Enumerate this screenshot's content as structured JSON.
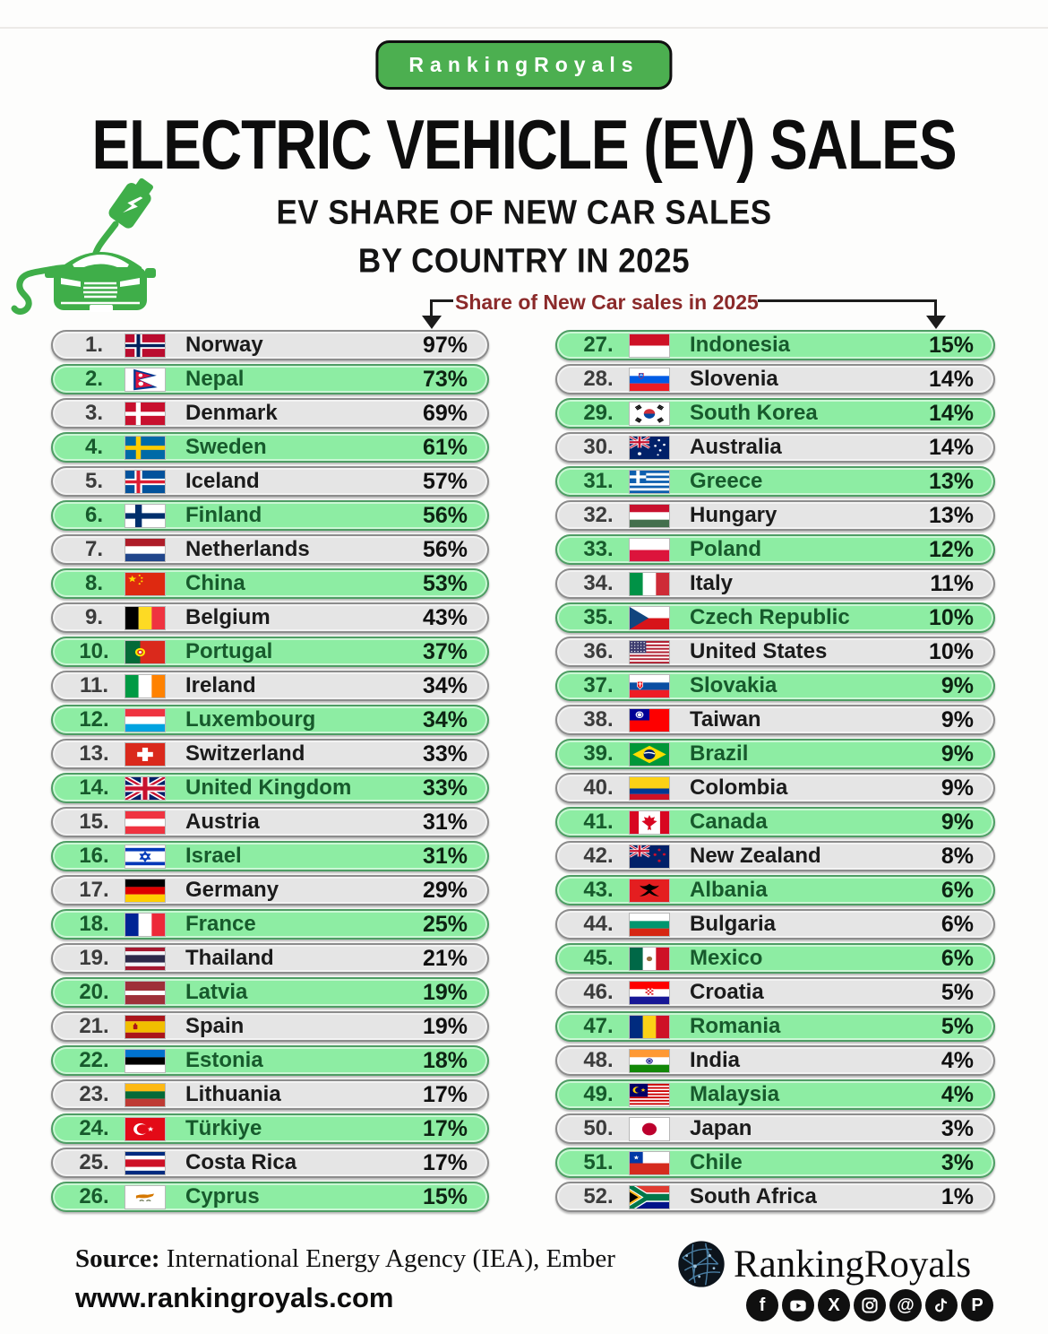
{
  "badge": {
    "label": "RankingRoyals"
  },
  "header": {
    "title": "ELECTRIC VEHICLE (EV) SALES",
    "subtitle1": "EV SHARE OF NEW CAR SALES",
    "subtitle2": "BY COUNTRY IN 2025"
  },
  "callout": {
    "label": "Share of New Car sales in 2025"
  },
  "colors": {
    "accent_green": "#4CAF50",
    "row_green": "#8DEDA3",
    "row_green_border": "#4E9D64",
    "row_gray": "#E5E5E5",
    "row_gray_border": "#8C8C8C",
    "green_text": "#175A2C",
    "callout_text": "#8B2A2A"
  },
  "rows": [
    {
      "rank": "1.",
      "country": "Norway",
      "value": "97%",
      "flag": "flag-norway"
    },
    {
      "rank": "2.",
      "country": "Nepal",
      "value": "73%",
      "flag": "flag-nepal"
    },
    {
      "rank": "3.",
      "country": "Denmark",
      "value": "69%",
      "flag": "flag-denmark"
    },
    {
      "rank": "4.",
      "country": "Sweden",
      "value": "61%",
      "flag": "flag-sweden"
    },
    {
      "rank": "5.",
      "country": "Iceland",
      "value": "57%",
      "flag": "flag-iceland"
    },
    {
      "rank": "6.",
      "country": "Finland",
      "value": "56%",
      "flag": "flag-finland"
    },
    {
      "rank": "7.",
      "country": "Netherlands",
      "value": "56%",
      "flag": "flag-netherlands"
    },
    {
      "rank": "8.",
      "country": "China",
      "value": "53%",
      "flag": "flag-china"
    },
    {
      "rank": "9.",
      "country": "Belgium",
      "value": "43%",
      "flag": "flag-belgium"
    },
    {
      "rank": "10.",
      "country": "Portugal",
      "value": "37%",
      "flag": "flag-portugal"
    },
    {
      "rank": "11.",
      "country": "Ireland",
      "value": "34%",
      "flag": "flag-ireland"
    },
    {
      "rank": "12.",
      "country": "Luxembourg",
      "value": "34%",
      "flag": "flag-luxembourg"
    },
    {
      "rank": "13.",
      "country": "Switzerland",
      "value": "33%",
      "flag": "flag-switzerland"
    },
    {
      "rank": "14.",
      "country": "United Kingdom",
      "value": "33%",
      "flag": "flag-uk"
    },
    {
      "rank": "15.",
      "country": "Austria",
      "value": "31%",
      "flag": "flag-austria"
    },
    {
      "rank": "16.",
      "country": "Israel",
      "value": "31%",
      "flag": "flag-israel"
    },
    {
      "rank": "17.",
      "country": "Germany",
      "value": "29%",
      "flag": "flag-germany"
    },
    {
      "rank": "18.",
      "country": "France",
      "value": "25%",
      "flag": "flag-france"
    },
    {
      "rank": "19.",
      "country": "Thailand",
      "value": "21%",
      "flag": "flag-thailand"
    },
    {
      "rank": "20.",
      "country": "Latvia",
      "value": "19%",
      "flag": "flag-latvia"
    },
    {
      "rank": "21.",
      "country": "Spain",
      "value": "19%",
      "flag": "flag-spain"
    },
    {
      "rank": "22.",
      "country": "Estonia",
      "value": "18%",
      "flag": "flag-estonia"
    },
    {
      "rank": "23.",
      "country": "Lithuania",
      "value": "17%",
      "flag": "flag-lithuania"
    },
    {
      "rank": "24.",
      "country": "Türkiye",
      "value": "17%",
      "flag": "flag-turkiye"
    },
    {
      "rank": "25.",
      "country": "Costa Rica",
      "value": "17%",
      "flag": "flag-costarica"
    },
    {
      "rank": "26.",
      "country": "Cyprus",
      "value": "15%",
      "flag": "flag-cyprus"
    },
    {
      "rank": "27.",
      "country": "Indonesia",
      "value": "15%",
      "flag": "flag-indonesia"
    },
    {
      "rank": "28.",
      "country": "Slovenia",
      "value": "14%",
      "flag": "flag-slovenia"
    },
    {
      "rank": "29.",
      "country": "South Korea",
      "value": "14%",
      "flag": "flag-southkorea"
    },
    {
      "rank": "30.",
      "country": "Australia",
      "value": "14%",
      "flag": "flag-australia"
    },
    {
      "rank": "31.",
      "country": "Greece",
      "value": "13%",
      "flag": "flag-greece"
    },
    {
      "rank": "32.",
      "country": "Hungary",
      "value": "13%",
      "flag": "flag-hungary"
    },
    {
      "rank": "33.",
      "country": "Poland",
      "value": "12%",
      "flag": "flag-poland"
    },
    {
      "rank": "34.",
      "country": "Italy",
      "value": "11%",
      "flag": "flag-italy"
    },
    {
      "rank": "35.",
      "country": "Czech Republic",
      "value": "10%",
      "flag": "flag-czech"
    },
    {
      "rank": "36.",
      "country": "United States",
      "value": "10%",
      "flag": "flag-usa"
    },
    {
      "rank": "37.",
      "country": "Slovakia",
      "value": "9%",
      "flag": "flag-slovakia"
    },
    {
      "rank": "38.",
      "country": "Taiwan",
      "value": "9%",
      "flag": "flag-taiwan"
    },
    {
      "rank": "39.",
      "country": "Brazil",
      "value": "9%",
      "flag": "flag-brazil"
    },
    {
      "rank": "40.",
      "country": "Colombia",
      "value": "9%",
      "flag": "flag-colombia"
    },
    {
      "rank": "41.",
      "country": "Canada",
      "value": "9%",
      "flag": "flag-canada"
    },
    {
      "rank": "42.",
      "country": "New Zealand",
      "value": "8%",
      "flag": "flag-newzealand"
    },
    {
      "rank": "43.",
      "country": "Albania",
      "value": "6%",
      "flag": "flag-albania"
    },
    {
      "rank": "44.",
      "country": "Bulgaria",
      "value": "6%",
      "flag": "flag-bulgaria"
    },
    {
      "rank": "45.",
      "country": "Mexico",
      "value": "6%",
      "flag": "flag-mexico"
    },
    {
      "rank": "46.",
      "country": "Croatia",
      "value": "5%",
      "flag": "flag-croatia"
    },
    {
      "rank": "47.",
      "country": "Romania",
      "value": "5%",
      "flag": "flag-romania"
    },
    {
      "rank": "48.",
      "country": "India",
      "value": "4%",
      "flag": "flag-india"
    },
    {
      "rank": "49.",
      "country": "Malaysia",
      "value": "4%",
      "flag": "flag-malaysia"
    },
    {
      "rank": "50.",
      "country": "Japan",
      "value": "3%",
      "flag": "flag-japan"
    },
    {
      "rank": "51.",
      "country": "Chile",
      "value": "3%",
      "flag": "flag-chile"
    },
    {
      "rank": "52.",
      "country": "South Africa",
      "value": "1%",
      "flag": "flag-southafrica"
    }
  ],
  "footer": {
    "source_label": "Source:",
    "source_text": " International Energy Agency (IEA), Ember",
    "website": "www.rankingroyals.com",
    "brand": "RankingRoyals",
    "social_icons": [
      "facebook",
      "youtube",
      "x",
      "instagram",
      "threads",
      "tiktok",
      "pinterest"
    ]
  },
  "chart_data": {
    "type": "table",
    "title": "Electric Vehicle (EV) Sales — EV Share of New Car Sales by Country in 2025",
    "value_label": "Share of New Car sales in 2025",
    "unit": "%",
    "categories": [
      "Norway",
      "Nepal",
      "Denmark",
      "Sweden",
      "Iceland",
      "Finland",
      "Netherlands",
      "China",
      "Belgium",
      "Portugal",
      "Ireland",
      "Luxembourg",
      "Switzerland",
      "United Kingdom",
      "Austria",
      "Israel",
      "Germany",
      "France",
      "Thailand",
      "Latvia",
      "Spain",
      "Estonia",
      "Lithuania",
      "Türkiye",
      "Costa Rica",
      "Cyprus",
      "Indonesia",
      "Slovenia",
      "South Korea",
      "Australia",
      "Greece",
      "Hungary",
      "Poland",
      "Italy",
      "Czech Republic",
      "United States",
      "Slovakia",
      "Taiwan",
      "Brazil",
      "Colombia",
      "Canada",
      "New Zealand",
      "Albania",
      "Bulgaria",
      "Mexico",
      "Croatia",
      "Romania",
      "India",
      "Malaysia",
      "Japan",
      "Chile",
      "South Africa"
    ],
    "values": [
      97,
      73,
      69,
      61,
      57,
      56,
      56,
      53,
      43,
      37,
      34,
      34,
      33,
      33,
      31,
      31,
      29,
      25,
      21,
      19,
      19,
      18,
      17,
      17,
      17,
      15,
      15,
      14,
      14,
      14,
      13,
      13,
      12,
      11,
      10,
      10,
      9,
      9,
      9,
      9,
      9,
      8,
      6,
      6,
      6,
      5,
      5,
      4,
      4,
      3,
      3,
      1
    ],
    "ranks": [
      1,
      2,
      3,
      4,
      5,
      6,
      7,
      8,
      9,
      10,
      11,
      12,
      13,
      14,
      15,
      16,
      17,
      18,
      19,
      20,
      21,
      22,
      23,
      24,
      25,
      26,
      27,
      28,
      29,
      30,
      31,
      32,
      33,
      34,
      35,
      36,
      37,
      38,
      39,
      40,
      41,
      42,
      43,
      44,
      45,
      46,
      47,
      48,
      49,
      50,
      51,
      52
    ],
    "source": "International Energy Agency (IEA), Ember"
  }
}
